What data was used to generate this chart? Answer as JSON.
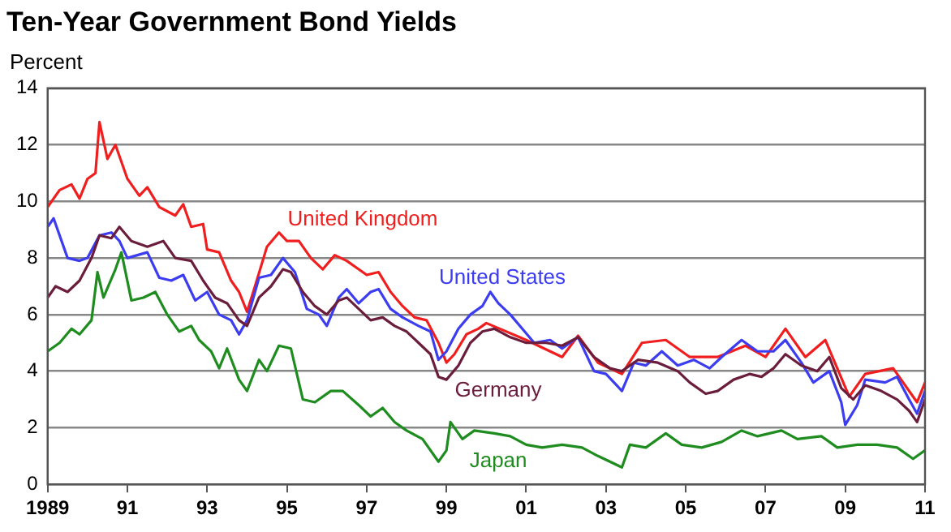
{
  "chart_data": {
    "type": "line",
    "title": "Ten-Year Government Bond Yields",
    "ylabel": "Percent",
    "xlim": [
      1989,
      2011
    ],
    "xticks": [
      {
        "value": 1989,
        "label": "1989"
      },
      {
        "value": 1991,
        "label": "91"
      },
      {
        "value": 1993,
        "label": "93"
      },
      {
        "value": 1995,
        "label": "95"
      },
      {
        "value": 1997,
        "label": "97"
      },
      {
        "value": 1999,
        "label": "99"
      },
      {
        "value": 2001,
        "label": "01"
      },
      {
        "value": 2003,
        "label": "03"
      },
      {
        "value": 2005,
        "label": "05"
      },
      {
        "value": 2007,
        "label": "07"
      },
      {
        "value": 2009,
        "label": "09"
      },
      {
        "value": 2011,
        "label": "11"
      }
    ],
    "ylim": [
      0,
      14
    ],
    "yticks": [
      0,
      2,
      4,
      6,
      8,
      10,
      12,
      14
    ],
    "grid": "y",
    "legend": false,
    "marker": "none",
    "line_style": "solid",
    "series": [
      {
        "name": "Japan",
        "color": "#1e8c1e",
        "x": [
          1989.0,
          1989.3,
          1989.6,
          1989.8,
          1990.1,
          1990.25,
          1990.4,
          1990.7,
          1990.85,
          1991.1,
          1991.4,
          1991.7,
          1992.0,
          1992.3,
          1992.6,
          1992.8,
          1993.1,
          1993.3,
          1993.5,
          1993.8,
          1994.0,
          1994.3,
          1994.5,
          1994.8,
          1995.1,
          1995.4,
          1995.7,
          1996.1,
          1996.4,
          1996.8,
          1997.1,
          1997.4,
          1997.7,
          1998.0,
          1998.4,
          1998.8,
          1999.0,
          1999.1,
          1999.4,
          1999.7,
          2000.2,
          2000.6,
          2001.0,
          2001.4,
          2001.9,
          2002.4,
          2002.8,
          2003.4,
          2003.6,
          2004.0,
          2004.5,
          2004.9,
          2005.4,
          2005.9,
          2006.4,
          2006.8,
          2007.4,
          2007.8,
          2008.4,
          2008.8,
          2009.3,
          2009.8,
          2010.3,
          2010.7,
          2011.0
        ],
        "values": [
          4.7,
          5.0,
          5.5,
          5.3,
          5.8,
          7.5,
          6.6,
          7.6,
          8.2,
          6.5,
          6.6,
          6.8,
          6.0,
          5.4,
          5.6,
          5.1,
          4.7,
          4.1,
          4.8,
          3.7,
          3.3,
          4.4,
          4.0,
          4.9,
          4.8,
          3.0,
          2.9,
          3.3,
          3.3,
          2.8,
          2.4,
          2.7,
          2.2,
          1.9,
          1.6,
          0.8,
          1.2,
          2.2,
          1.6,
          1.9,
          1.8,
          1.7,
          1.4,
          1.3,
          1.4,
          1.3,
          1.0,
          0.6,
          1.4,
          1.3,
          1.8,
          1.4,
          1.3,
          1.5,
          1.9,
          1.7,
          1.9,
          1.6,
          1.7,
          1.3,
          1.4,
          1.4,
          1.3,
          0.9,
          1.2
        ]
      },
      {
        "name": "Germany",
        "color": "#6b1e3c",
        "x": [
          1989.0,
          1989.2,
          1989.5,
          1989.8,
          1990.1,
          1990.3,
          1990.6,
          1990.8,
          1991.1,
          1991.5,
          1991.9,
          1992.2,
          1992.6,
          1992.9,
          1993.2,
          1993.5,
          1993.8,
          1994.0,
          1994.3,
          1994.6,
          1994.9,
          1995.1,
          1995.4,
          1995.7,
          1996.0,
          1996.3,
          1996.5,
          1996.8,
          1997.1,
          1997.4,
          1997.7,
          1998.0,
          1998.3,
          1998.6,
          1998.8,
          1999.0,
          1999.3,
          1999.6,
          1999.9,
          2000.2,
          2000.6,
          2001.0,
          2001.5,
          2001.9,
          2002.3,
          2002.7,
          2003.1,
          2003.4,
          2003.8,
          2004.3,
          2004.8,
          2005.1,
          2005.5,
          2005.8,
          2006.2,
          2006.6,
          2006.9,
          2007.2,
          2007.5,
          2007.9,
          2008.3,
          2008.6,
          2008.9,
          2009.2,
          2009.5,
          2009.9,
          2010.3,
          2010.6,
          2010.8,
          2011.0
        ],
        "values": [
          6.6,
          7.0,
          6.8,
          7.2,
          8.0,
          8.8,
          8.7,
          9.1,
          8.6,
          8.4,
          8.6,
          8.0,
          7.9,
          7.2,
          6.6,
          6.4,
          5.8,
          5.6,
          6.6,
          7.0,
          7.6,
          7.5,
          6.8,
          6.3,
          6.0,
          6.5,
          6.6,
          6.2,
          5.8,
          5.9,
          5.6,
          5.4,
          5.0,
          4.6,
          3.8,
          3.7,
          4.2,
          5.0,
          5.4,
          5.5,
          5.2,
          5.0,
          5.0,
          4.9,
          5.2,
          4.5,
          4.1,
          4.0,
          4.4,
          4.3,
          4.0,
          3.6,
          3.2,
          3.3,
          3.7,
          3.9,
          3.8,
          4.1,
          4.6,
          4.2,
          4.0,
          4.5,
          3.4,
          3.0,
          3.5,
          3.3,
          3.0,
          2.6,
          2.2,
          3.0
        ]
      },
      {
        "name": "United States",
        "color": "#3c3cf0",
        "x": [
          1989.0,
          1989.15,
          1989.5,
          1989.8,
          1990.0,
          1990.3,
          1990.6,
          1990.8,
          1991.0,
          1991.5,
          1991.8,
          1992.1,
          1992.4,
          1992.7,
          1993.0,
          1993.3,
          1993.6,
          1993.8,
          1994.0,
          1994.3,
          1994.6,
          1994.9,
          1995.2,
          1995.5,
          1995.8,
          1996.0,
          1996.3,
          1996.5,
          1996.8,
          1997.1,
          1997.3,
          1997.6,
          1997.9,
          1998.3,
          1998.6,
          1998.8,
          1999.0,
          1999.3,
          1999.6,
          1999.9,
          2000.1,
          2000.3,
          2000.6,
          2000.9,
          2001.2,
          2001.6,
          2001.9,
          2002.3,
          2002.7,
          2003.0,
          2003.4,
          2003.7,
          2004.0,
          2004.4,
          2004.8,
          2005.2,
          2005.6,
          2005.9,
          2006.4,
          2006.8,
          2007.2,
          2007.5,
          2007.9,
          2008.2,
          2008.6,
          2008.9,
          2009.0,
          2009.3,
          2009.5,
          2010.0,
          2010.3,
          2010.6,
          2010.8,
          2011.0
        ],
        "values": [
          9.1,
          9.4,
          8.0,
          7.9,
          8.0,
          8.8,
          8.9,
          8.6,
          8.0,
          8.2,
          7.3,
          7.2,
          7.4,
          6.5,
          6.8,
          6.0,
          5.8,
          5.3,
          5.8,
          7.3,
          7.4,
          8.0,
          7.5,
          6.2,
          6.0,
          5.6,
          6.6,
          6.9,
          6.4,
          6.8,
          6.9,
          6.2,
          5.9,
          5.6,
          5.4,
          4.4,
          4.7,
          5.5,
          6.0,
          6.3,
          6.8,
          6.4,
          6.0,
          5.5,
          5.0,
          5.1,
          4.8,
          5.2,
          4.0,
          3.9,
          3.3,
          4.3,
          4.2,
          4.7,
          4.2,
          4.4,
          4.1,
          4.5,
          5.1,
          4.7,
          4.7,
          5.1,
          4.3,
          3.6,
          4.0,
          2.9,
          2.1,
          2.8,
          3.7,
          3.6,
          3.8,
          3.0,
          2.5,
          3.3
        ]
      },
      {
        "name": "United Kingdom",
        "color": "#f01e1e",
        "x": [
          1989.0,
          1989.3,
          1989.6,
          1989.8,
          1990.0,
          1990.2,
          1990.3,
          1990.5,
          1990.7,
          1991.0,
          1991.3,
          1991.5,
          1991.8,
          1992.2,
          1992.4,
          1992.6,
          1992.9,
          1993.0,
          1993.3,
          1993.6,
          1993.8,
          1994.0,
          1994.2,
          1994.5,
          1994.8,
          1995.0,
          1995.3,
          1995.6,
          1995.9,
          1996.2,
          1996.5,
          1996.8,
          1997.0,
          1997.3,
          1997.6,
          1997.9,
          1998.2,
          1998.5,
          1998.8,
          1999.0,
          1999.2,
          1999.5,
          1999.8,
          2000.0,
          2001.0,
          2001.9,
          2002.3,
          2002.8,
          2003.4,
          2003.9,
          2004.5,
          2005.1,
          2005.8,
          2006.5,
          2007.0,
          2007.5,
          2008.0,
          2008.5,
          2009.1,
          2009.5,
          2010.2,
          2010.8,
          2011.0
        ],
        "values": [
          9.8,
          10.4,
          10.6,
          10.1,
          10.8,
          11.0,
          12.8,
          11.5,
          12.0,
          10.8,
          10.2,
          10.5,
          9.8,
          9.5,
          9.9,
          9.1,
          9.2,
          8.3,
          8.2,
          7.2,
          6.8,
          6.1,
          7.0,
          8.4,
          8.9,
          8.6,
          8.6,
          8.0,
          7.6,
          8.1,
          7.9,
          7.6,
          7.4,
          7.5,
          6.8,
          6.3,
          5.9,
          5.8,
          5.0,
          4.3,
          4.6,
          5.3,
          5.5,
          5.7,
          5.1,
          4.5,
          5.25,
          4.3,
          3.9,
          5.0,
          5.1,
          4.5,
          4.5,
          4.9,
          4.5,
          5.5,
          4.5,
          5.1,
          3.1,
          3.9,
          4.1,
          2.9,
          3.6
        ]
      }
    ]
  }
}
